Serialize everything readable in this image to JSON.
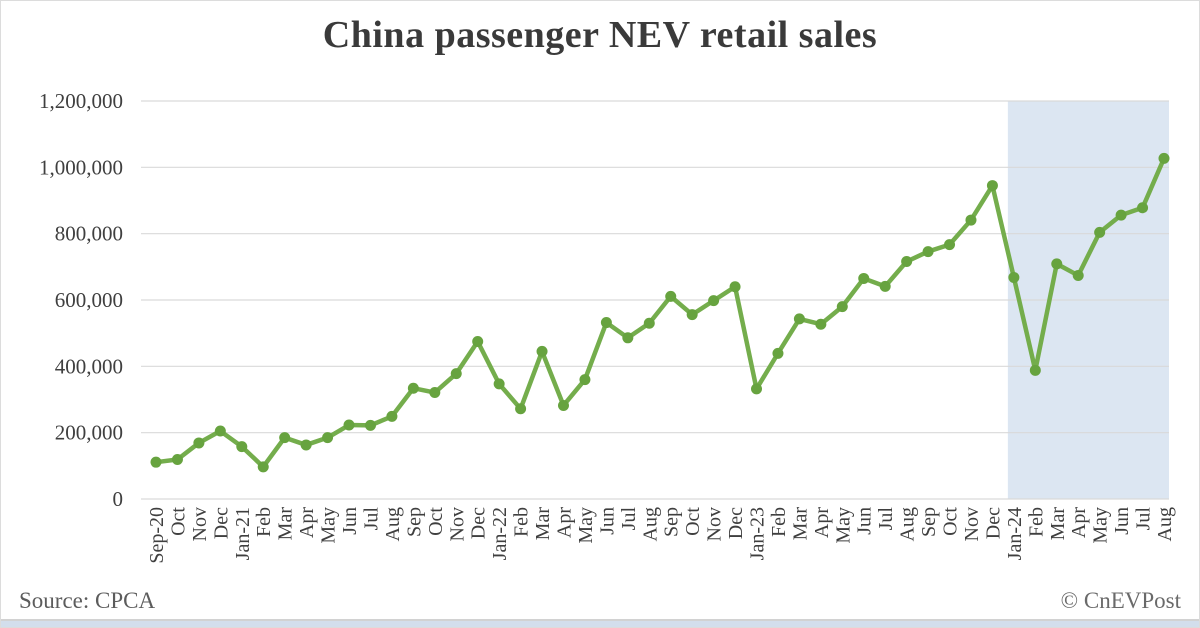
{
  "title": "China passenger NEV retail sales",
  "footer": {
    "source": "Source: CPCA",
    "credit": "© CnEVPost"
  },
  "colors": {
    "line": "#74ad4c",
    "marker": "#67a33f",
    "grid": "#d9d9d9",
    "highlight": "#dce6f2",
    "title_text": "#3a3a3a",
    "axis_text": "#3f3f3f",
    "bottom_bar": "#d3deec"
  },
  "chart_data": {
    "type": "line",
    "title": "China passenger NEV retail sales",
    "xlabel": "",
    "ylabel": "",
    "legend": "none",
    "grid": true,
    "grid_color": "#d9d9d9",
    "line_color": "#74ad4c",
    "marker_color": "#67a33f",
    "ylim": [
      0,
      1200000
    ],
    "yticks": [
      0,
      200000,
      400000,
      600000,
      800000,
      1000000,
      1200000
    ],
    "ytick_labels": [
      "0",
      "200,000",
      "400,000",
      "600,000",
      "800,000",
      "1,000,000",
      "1,200,000"
    ],
    "categories": [
      "Sep-20",
      "Oct",
      "Nov",
      "Dec",
      "Jan-21",
      "Feb",
      "Mar",
      "Apr",
      "May",
      "Jun",
      "Jul",
      "Aug",
      "Sep",
      "Oct",
      "Nov",
      "Dec",
      "Jan-22",
      "Feb",
      "Mar",
      "Apr",
      "May",
      "Jun",
      "Jul",
      "Aug",
      "Sep",
      "Oct",
      "Nov",
      "Dec",
      "Jan-23",
      "Feb",
      "Mar",
      "Apr",
      "May",
      "Jun",
      "Jul",
      "Aug",
      "Sep",
      "Oct",
      "Nov",
      "Dec",
      "Jan-24",
      "Feb",
      "Mar",
      "Apr",
      "May",
      "Jun",
      "Jul",
      "Aug"
    ],
    "values": [
      111000,
      119000,
      169000,
      205000,
      158000,
      97000,
      185000,
      163000,
      185000,
      223000,
      222000,
      249000,
      334000,
      321000,
      378000,
      475000,
      347000,
      272000,
      445000,
      282000,
      360000,
      532000,
      486000,
      530000,
      611000,
      556000,
      598000,
      640000,
      332000,
      439000,
      543000,
      527000,
      580000,
      665000,
      641000,
      716000,
      746000,
      767000,
      841000,
      945000,
      668000,
      388000,
      709000,
      674000,
      804000,
      856000,
      878000,
      1027000
    ],
    "highlight": {
      "start_index": 40,
      "start_label": "Jan-24",
      "end_label": "Aug",
      "color": "#dce6f2"
    }
  }
}
